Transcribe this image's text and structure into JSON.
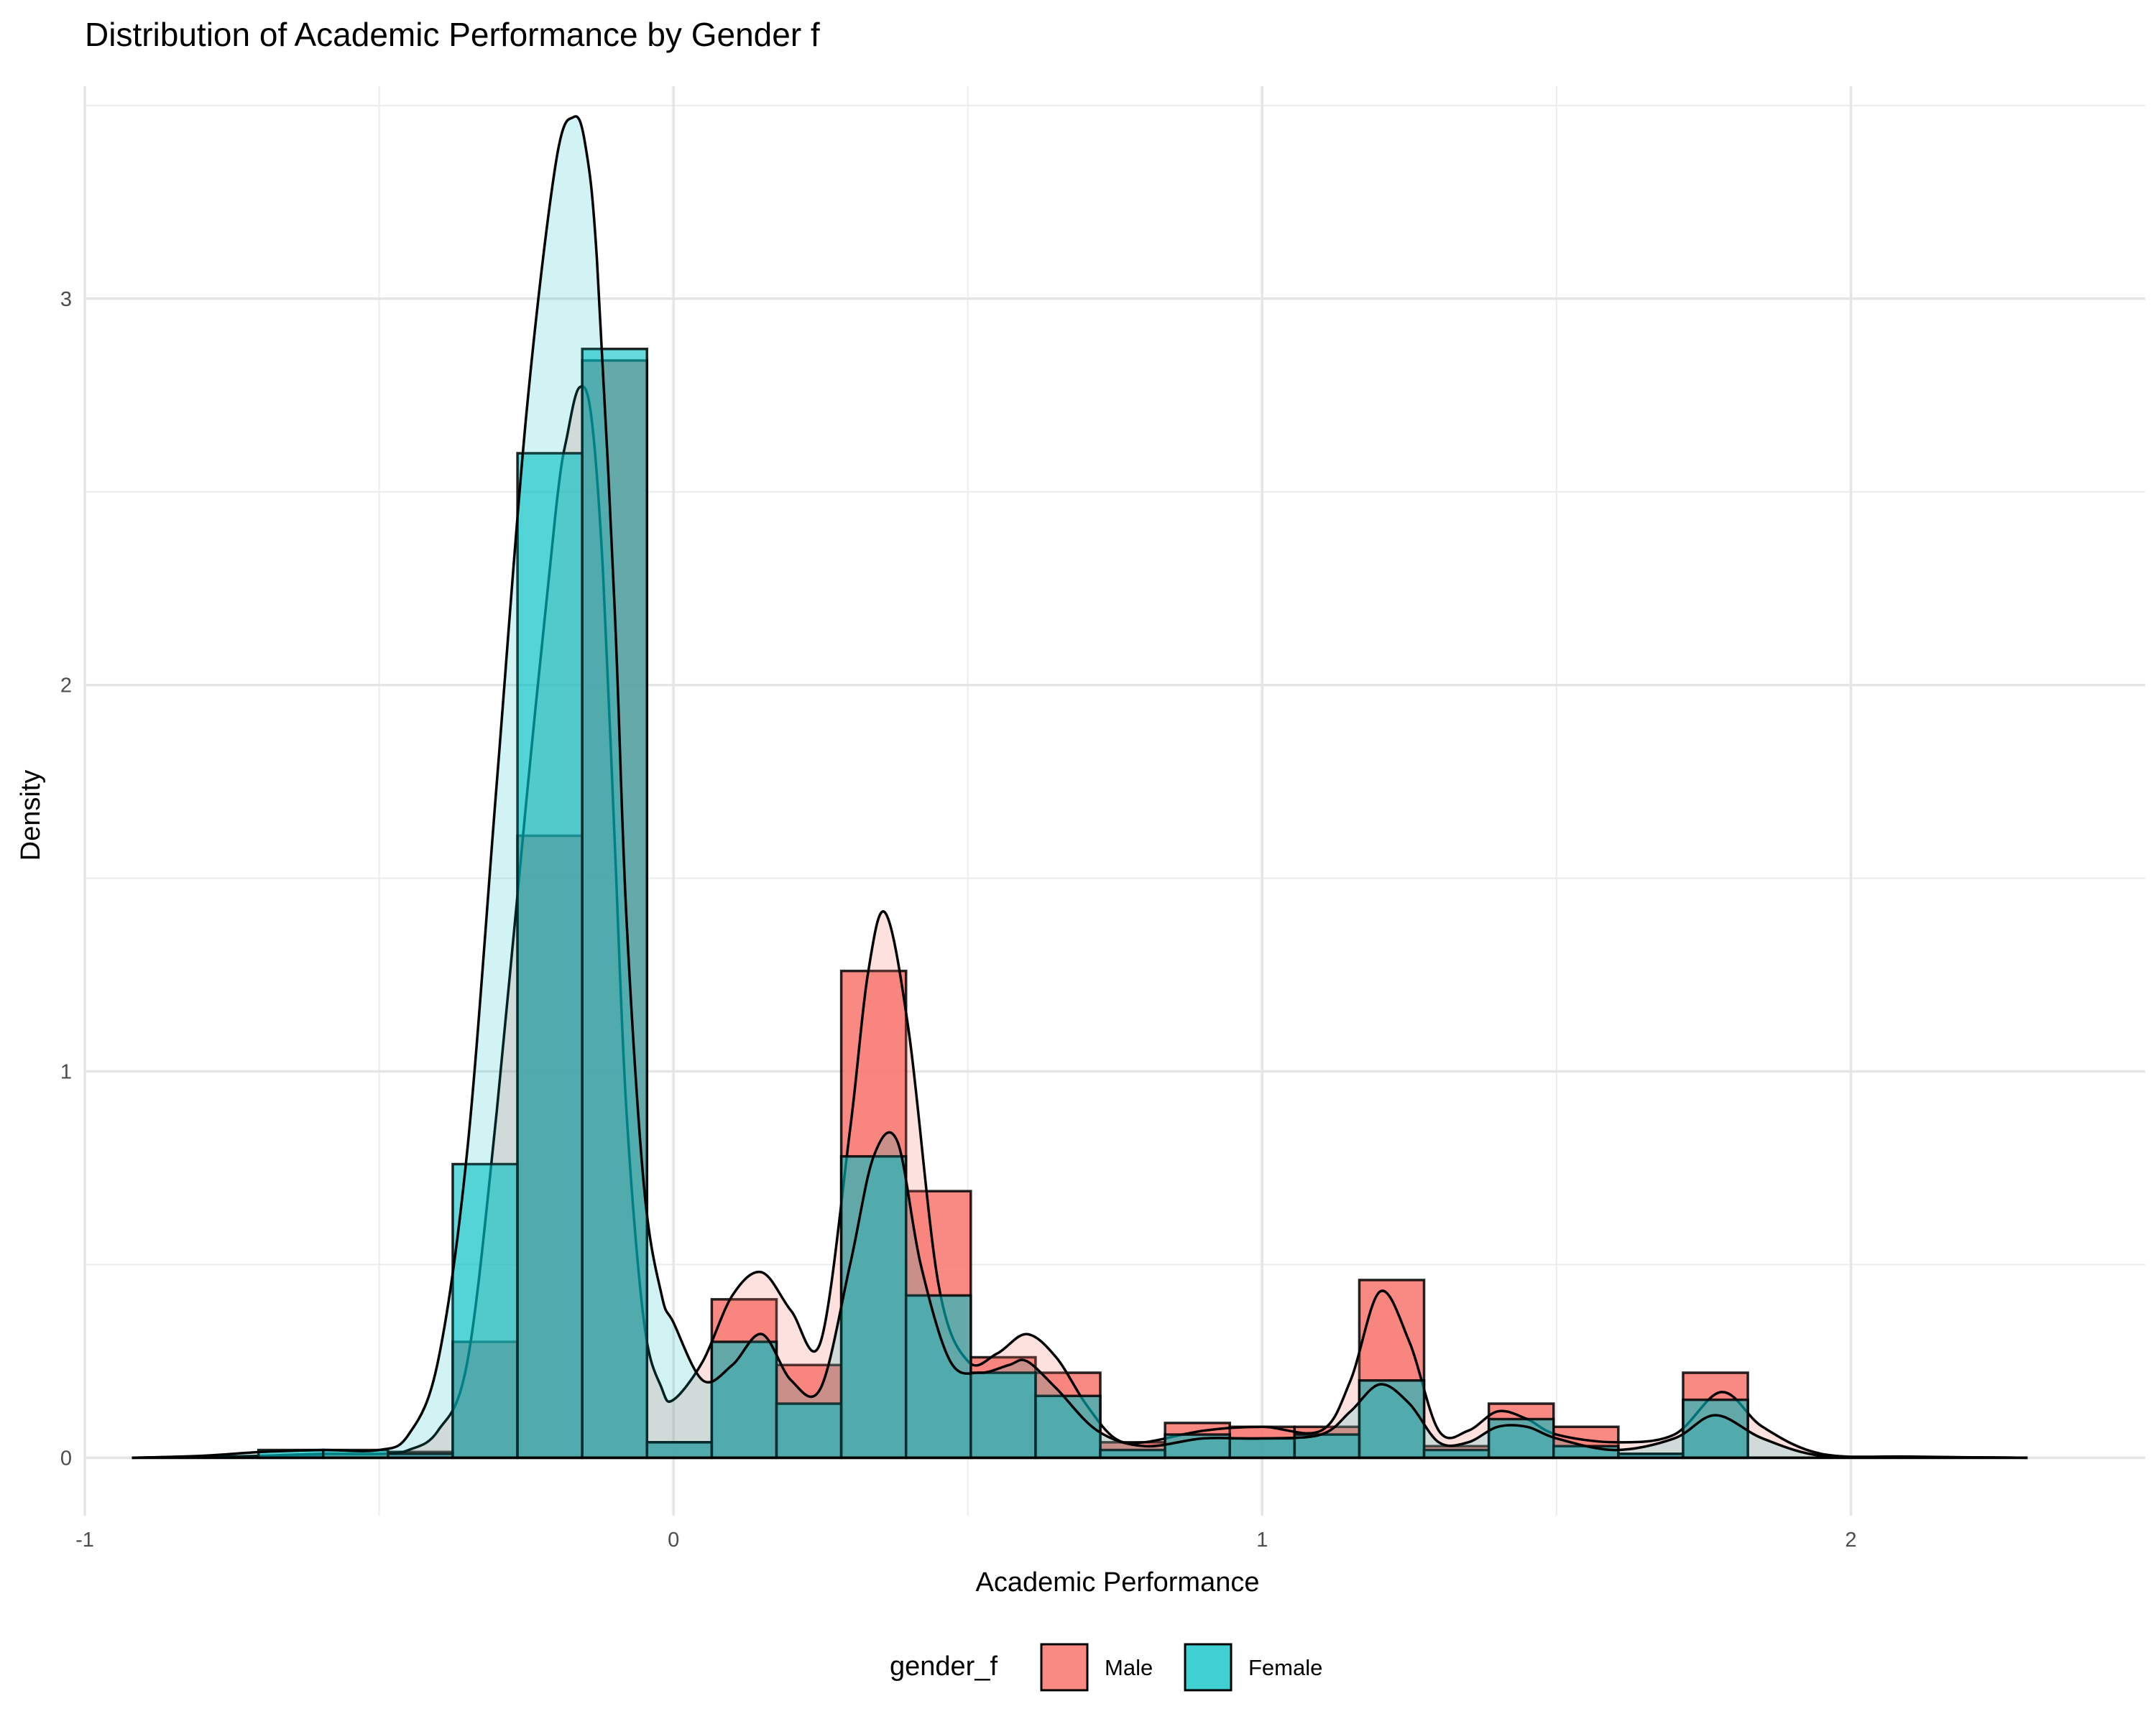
{
  "chart_data": {
    "type": "histogram-density",
    "title": "Distribution of Academic Performance by Gender f",
    "xlabel": "Academic Performance",
    "ylabel": "Density",
    "xlim": [
      -1.0,
      2.5
    ],
    "ylim": [
      -0.15,
      3.55
    ],
    "x_ticks": [
      -1,
      0,
      1,
      2
    ],
    "x_tick_labels": [
      "-1",
      "0",
      "1",
      "2"
    ],
    "y_ticks": [
      0,
      1,
      2,
      3
    ],
    "y_tick_labels": [
      "0",
      "1",
      "2",
      "3"
    ],
    "grid": true,
    "legend": {
      "title": "gender_f",
      "position": "bottom"
    },
    "bin_edges": [
      -0.705,
      -0.595,
      -0.485,
      -0.375,
      -0.265,
      -0.155,
      -0.045,
      0.065,
      0.175,
      0.285,
      0.395,
      0.505,
      0.615,
      0.725,
      0.835,
      0.945,
      1.055,
      1.165,
      1.275,
      1.385,
      1.495,
      1.605,
      1.715,
      1.825
    ],
    "series": [
      {
        "name": "Male",
        "color": "#F8766D",
        "hist_values": [
          0.005,
          0.01,
          0.015,
          0.3,
          1.61,
          2.84,
          0.04,
          0.41,
          0.24,
          1.26,
          0.69,
          0.26,
          0.22,
          0.04,
          0.09,
          0.08,
          0.08,
          0.46,
          0.03,
          0.14,
          0.08,
          0.01,
          0.22
        ],
        "density_x": [
          -0.92,
          -0.8,
          -0.7,
          -0.6,
          -0.5,
          -0.45,
          -0.4,
          -0.35,
          -0.3,
          -0.25,
          -0.2,
          -0.18,
          -0.16,
          -0.14,
          -0.12,
          -0.1,
          -0.08,
          -0.05,
          -0.02,
          0.0,
          0.05,
          0.1,
          0.15,
          0.2,
          0.25,
          0.3,
          0.33,
          0.36,
          0.4,
          0.45,
          0.5,
          0.55,
          0.6,
          0.65,
          0.7,
          0.75,
          0.8,
          0.9,
          1.0,
          1.1,
          1.15,
          1.2,
          1.25,
          1.3,
          1.35,
          1.4,
          1.45,
          1.5,
          1.6,
          1.7,
          1.78,
          1.85,
          1.95,
          2.1,
          2.3
        ],
        "density_y": [
          0.0,
          0.002,
          0.005,
          0.01,
          0.01,
          0.02,
          0.07,
          0.25,
          0.9,
          1.7,
          2.45,
          2.65,
          2.77,
          2.7,
          2.3,
          1.6,
          0.9,
          0.35,
          0.18,
          0.15,
          0.25,
          0.42,
          0.48,
          0.38,
          0.3,
          0.85,
          1.25,
          1.41,
          1.1,
          0.45,
          0.25,
          0.27,
          0.32,
          0.26,
          0.14,
          0.05,
          0.04,
          0.07,
          0.08,
          0.07,
          0.2,
          0.43,
          0.3,
          0.07,
          0.07,
          0.12,
          0.1,
          0.06,
          0.04,
          0.06,
          0.17,
          0.08,
          0.01,
          0.003,
          0.0
        ]
      },
      {
        "name": "Female",
        "color": "#00BFC4",
        "hist_values": [
          0.02,
          0.02,
          0.01,
          0.76,
          2.6,
          2.87,
          0.04,
          0.3,
          0.14,
          0.78,
          0.42,
          0.22,
          0.16,
          0.02,
          0.06,
          0.05,
          0.06,
          0.2,
          0.02,
          0.1,
          0.03,
          0.01,
          0.15
        ],
        "density_x": [
          -0.92,
          -0.8,
          -0.7,
          -0.6,
          -0.5,
          -0.45,
          -0.4,
          -0.35,
          -0.3,
          -0.25,
          -0.2,
          -0.17,
          -0.15,
          -0.13,
          -0.1,
          -0.08,
          -0.05,
          -0.02,
          0.0,
          0.05,
          0.1,
          0.15,
          0.2,
          0.25,
          0.3,
          0.34,
          0.38,
          0.42,
          0.47,
          0.52,
          0.57,
          0.6,
          0.65,
          0.72,
          0.8,
          0.9,
          1.0,
          1.1,
          1.15,
          1.2,
          1.25,
          1.3,
          1.35,
          1.4,
          1.45,
          1.5,
          1.6,
          1.7,
          1.77,
          1.85,
          1.95,
          2.1,
          2.3
        ],
        "density_y": [
          0.0,
          0.005,
          0.015,
          0.02,
          0.02,
          0.06,
          0.25,
          0.8,
          1.75,
          2.7,
          3.35,
          3.47,
          3.4,
          3.1,
          2.2,
          1.4,
          0.7,
          0.42,
          0.35,
          0.2,
          0.24,
          0.32,
          0.2,
          0.18,
          0.5,
          0.78,
          0.82,
          0.5,
          0.25,
          0.22,
          0.24,
          0.25,
          0.18,
          0.07,
          0.03,
          0.05,
          0.05,
          0.06,
          0.12,
          0.19,
          0.14,
          0.04,
          0.04,
          0.08,
          0.08,
          0.05,
          0.02,
          0.05,
          0.11,
          0.05,
          0.005,
          0.002,
          0.0
        ]
      }
    ]
  }
}
